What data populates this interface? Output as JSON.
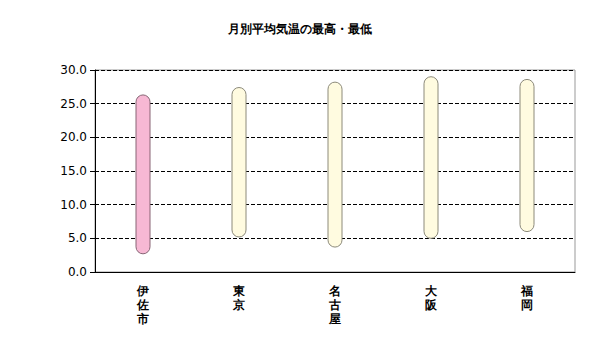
{
  "chart_data": {
    "type": "bar",
    "title": "月別平均気温の最高・最低",
    "categories": [
      "伊佐市",
      "東京",
      "名古屋",
      "大阪",
      "福岡"
    ],
    "low": [
      2.7,
      5.2,
      3.7,
      5.0,
      6.0
    ],
    "high": [
      26.3,
      27.4,
      28.2,
      29.0,
      28.6
    ],
    "colors": [
      "#f7b8d4",
      "#fffbe0",
      "#fffbe0",
      "#fffbe0",
      "#fffbe0"
    ],
    "ylim": [
      0,
      30
    ],
    "yticks": [
      {
        "value": 0,
        "label": "0.0"
      },
      {
        "value": 5,
        "label": "5.0"
      },
      {
        "value": 10,
        "label": "10.0"
      },
      {
        "value": 15,
        "label": "15.0"
      },
      {
        "value": 20,
        "label": "20.0"
      },
      {
        "value": 25,
        "label": "25.0"
      },
      {
        "value": 30,
        "label": "30.0"
      }
    ],
    "grid": true
  }
}
